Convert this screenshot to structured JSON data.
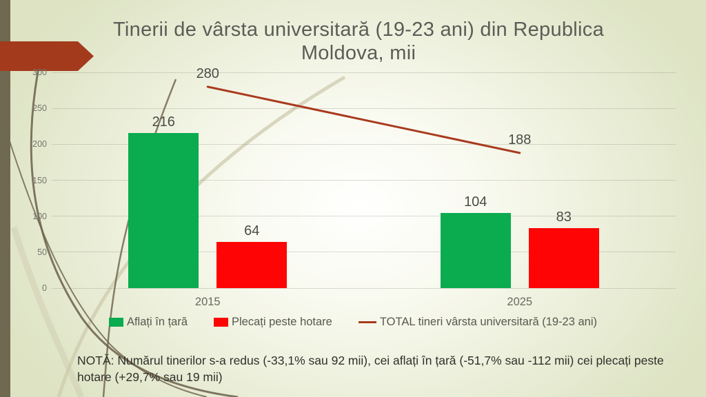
{
  "slide": {
    "title": "Tinerii de vârsta universitară (19-23 ani) din Republica\nMoldova, mii",
    "note": "NOTĂ: Numărul tinerilor s-a redus (-33,1% sau 92 mii), cei aflați în țară (-51,7% sau -112 mii) cei plecați peste hotare (+29,7% sau 19 mii)"
  },
  "colors": {
    "accent_red": "#a43a1c",
    "olive_bar": "#6e6950",
    "bar_green": "#0bab50",
    "bar_red": "#fe0404",
    "total_line": "#a93a1e",
    "background_edge": "#dde3c3"
  },
  "chart_data": {
    "type": "bar",
    "categories": [
      "2015",
      "2025"
    ],
    "series": [
      {
        "name": "Aflați în țară",
        "type": "bar",
        "color": "#0bab50",
        "values": [
          216,
          104
        ]
      },
      {
        "name": "Plecați peste hotare",
        "type": "bar",
        "color": "#fe0404",
        "values": [
          64,
          83
        ]
      },
      {
        "name": "TOTAL tineri vârsta universitară (19-23 ani)",
        "type": "line",
        "color": "#a93a1e",
        "values": [
          280,
          188
        ]
      }
    ],
    "yticks": [
      0,
      50,
      100,
      150,
      200,
      250,
      300
    ],
    "ylim": [
      0,
      300
    ],
    "grid": true,
    "legend_position": "bottom",
    "xlabel": "",
    "ylabel": ""
  }
}
